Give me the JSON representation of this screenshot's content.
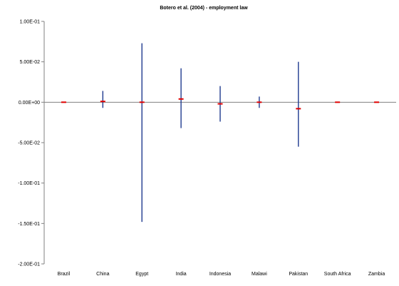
{
  "chart_data": {
    "type": "error-bar",
    "title": "Botero et al. (2004) - employment law",
    "xlabel": "",
    "ylabel": "",
    "ylim": [
      -0.2,
      0.1
    ],
    "yticks": [
      0.1,
      0.05,
      0.0,
      -0.05,
      -0.1,
      -0.15,
      -0.2
    ],
    "ytick_labels": [
      "1.00E-01",
      "5.00E-02",
      "0.00E+00",
      "-5.00E-02",
      "-1.00E-01",
      "-1.50E-01",
      "-2.00E-01"
    ],
    "grid": false,
    "categories": [
      "Brazil",
      "China",
      "Egypt",
      "India",
      "Indonesia",
      "Malawi",
      "Pakistan",
      "South Africa",
      "Zambia"
    ],
    "points": [
      {
        "category": "Brazil",
        "estimate": 0.0,
        "low": 0.0,
        "high": 0.0
      },
      {
        "category": "China",
        "estimate": 0.001,
        "low": -0.007,
        "high": 0.014
      },
      {
        "category": "Egypt",
        "estimate": 0.0,
        "low": -0.148,
        "high": 0.073
      },
      {
        "category": "India",
        "estimate": 0.004,
        "low": -0.032,
        "high": 0.042
      },
      {
        "category": "Indonesia",
        "estimate": -0.002,
        "low": -0.024,
        "high": 0.02
      },
      {
        "category": "Malawi",
        "estimate": 0.0,
        "low": -0.007,
        "high": 0.007
      },
      {
        "category": "Pakistan",
        "estimate": -0.008,
        "low": -0.055,
        "high": 0.05
      },
      {
        "category": "South Africa",
        "estimate": 0.0,
        "low": 0.0,
        "high": 0.0
      },
      {
        "category": "Zambia",
        "estimate": 0.0,
        "low": 0.0,
        "high": 0.0
      }
    ],
    "colors": {
      "error_bar": "#1f3a8f",
      "estimate": "#e00000",
      "axis": "#808080"
    }
  }
}
